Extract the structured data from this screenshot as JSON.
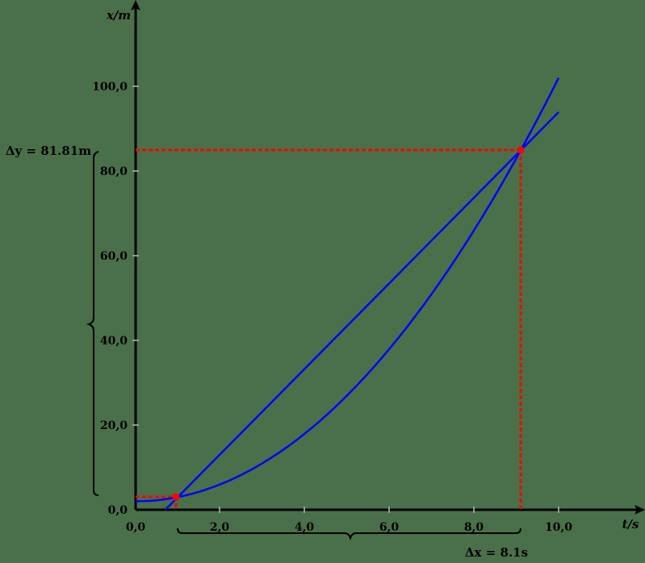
{
  "chart_data": {
    "type": "line",
    "title": "",
    "xlabel": "t/s",
    "ylabel": "x/m",
    "xlim": [
      0,
      11.8
    ],
    "ylim": [
      0,
      118
    ],
    "grid": false,
    "background_color": "#4a7049",
    "x_ticks": [
      0,
      2,
      4,
      6,
      8,
      10
    ],
    "x_tick_labels": [
      "0,0",
      "2,0",
      "4,0",
      "6,0",
      "8,0",
      "10,0"
    ],
    "y_ticks": [
      0,
      20,
      40,
      60,
      80,
      100
    ],
    "y_tick_labels": [
      "0,0",
      "20,0",
      "40,0",
      "60,0",
      "80,0",
      "100,0"
    ],
    "series": [
      {
        "name": "parabola",
        "formula": "x = t^2 + 2",
        "color": "#0000ff",
        "x": [
          0,
          1,
          2,
          3,
          4,
          5,
          6,
          7,
          8,
          9,
          10
        ],
        "y": [
          2,
          3,
          6,
          11,
          18,
          27,
          38,
          51,
          66,
          83,
          102
        ]
      },
      {
        "name": "secant",
        "formula": "x = 3 + 10.1 (t - 1)",
        "color": "#0000ff",
        "x": [
          0.7,
          1,
          9.1,
          10
        ],
        "y": [
          -0.03,
          3,
          84.81,
          93.9
        ]
      }
    ],
    "points": [
      {
        "t": 1.0,
        "x": 3.0,
        "color": "#ff0000"
      },
      {
        "t": 9.1,
        "x": 84.81,
        "color": "#ff0000"
      }
    ],
    "annotations": {
      "delta_x": "Δx = 8.1s",
      "delta_y": "Δy = 81.81m"
    }
  },
  "labels": {
    "x_axis": "t/s",
    "y_axis": "x/m",
    "delta_x": "Δx = 8.1s",
    "delta_y": "Δy = 81.81m",
    "x_ticks": [
      "0,0",
      "2,0",
      "4,0",
      "6,0",
      "8,0",
      "10,0"
    ],
    "y_ticks": [
      "0,0",
      "20,0",
      "40,0",
      "60,0",
      "80,0",
      "100,0"
    ]
  }
}
